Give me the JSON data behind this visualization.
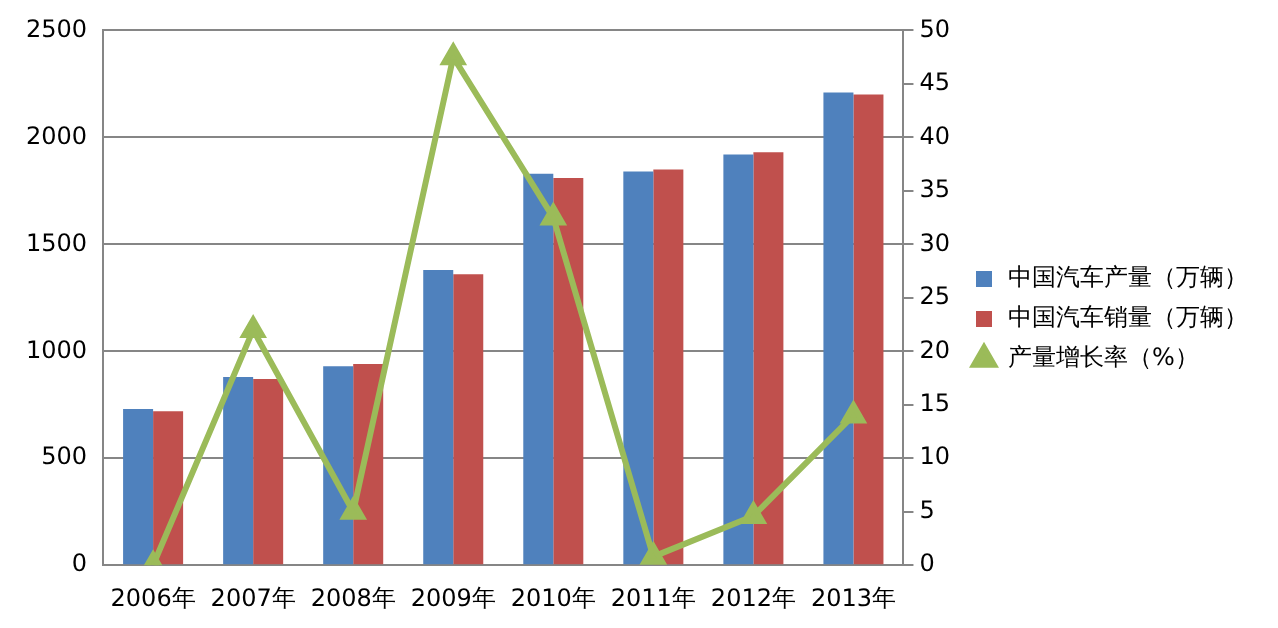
{
  "chart_data": {
    "type": "bar",
    "categories": [
      "2006年",
      "2007年",
      "2008年",
      "2009年",
      "2010年",
      "2011年",
      "2012年",
      "2013年"
    ],
    "series": [
      {
        "name": "中国汽车产量（万辆）",
        "color": "#4f81bd",
        "values": [
          730,
          880,
          930,
          1380,
          1830,
          1840,
          1920,
          2210
        ]
      },
      {
        "name": "中国汽车销量（万辆）",
        "color": "#c0504d",
        "values": [
          720,
          870,
          940,
          1360,
          1810,
          1850,
          1930,
          2200
        ]
      },
      {
        "name": "产量增长率（%）",
        "type": "line",
        "axis": "y2",
        "color": "#9bbb59",
        "marker": "triangle",
        "values": [
          0,
          22,
          5,
          47.5,
          32.5,
          0.8,
          4.6,
          14
        ]
      }
    ],
    "ylim": [
      0,
      2500
    ],
    "yticks": [
      0,
      500,
      1000,
      1500,
      2000,
      2500
    ],
    "y2lim": [
      0,
      50
    ],
    "y2ticks": [
      0,
      5,
      10,
      15,
      20,
      25,
      30,
      35,
      40,
      45,
      50
    ],
    "grid": "y",
    "legend": "right"
  }
}
